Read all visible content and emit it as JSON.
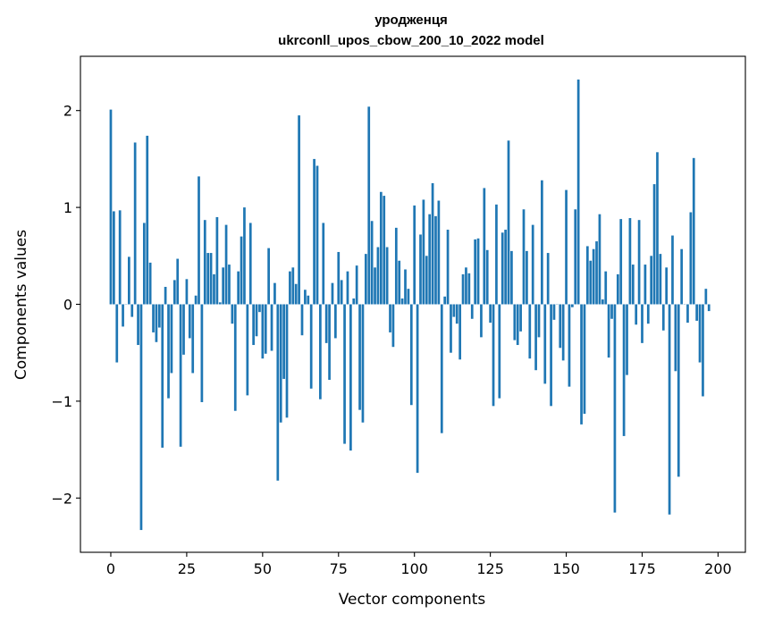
{
  "chart_data": {
    "type": "bar",
    "title_line1": "уродженця",
    "title_line2": "ukrconll_upos_cbow_200_10_2022 model",
    "xlabel": "Vector components",
    "ylabel": "Components values",
    "xlim": [
      -10,
      209
    ],
    "ylim": [
      -2.56,
      2.56
    ],
    "xticks": [
      0,
      25,
      50,
      75,
      100,
      125,
      150,
      175,
      200
    ],
    "xtick_labels": [
      "0",
      "25",
      "50",
      "75",
      "100",
      "125",
      "150",
      "175",
      "200"
    ],
    "yticks": [
      -2,
      -1,
      0,
      1,
      2
    ],
    "ytick_labels": [
      "−2",
      "−1",
      "0",
      "1",
      "2"
    ],
    "grid": false,
    "bar_color": "#1f77b4",
    "values": [
      2.01,
      0.96,
      -0.6,
      0.97,
      -0.23,
      0.0,
      0.49,
      -0.13,
      1.67,
      -0.42,
      -2.33,
      0.84,
      1.74,
      0.43,
      -0.29,
      -0.39,
      -0.24,
      -1.48,
      0.18,
      -0.97,
      -0.71,
      0.25,
      0.47,
      -1.47,
      -0.52,
      0.26,
      -0.35,
      -0.71,
      0.09,
      1.32,
      -1.01,
      0.87,
      0.53,
      0.53,
      0.31,
      0.9,
      0.02,
      0.38,
      0.82,
      0.41,
      -0.2,
      -1.1,
      0.34,
      0.7,
      1.0,
      -0.94,
      0.84,
      -0.42,
      -0.33,
      -0.08,
      -0.56,
      -0.51,
      0.58,
      -0.48,
      0.22,
      -1.82,
      -1.22,
      -0.77,
      -1.17,
      0.34,
      0.38,
      0.21,
      1.95,
      -0.32,
      0.15,
      0.09,
      -0.87,
      1.5,
      1.43,
      -0.98,
      0.84,
      -0.4,
      -0.78,
      0.22,
      -0.35,
      0.54,
      0.25,
      -1.44,
      0.34,
      -1.51,
      0.06,
      0.4,
      -1.09,
      -1.22,
      0.52,
      2.04,
      0.86,
      0.38,
      0.59,
      1.16,
      1.12,
      0.59,
      -0.29,
      -0.44,
      0.79,
      0.45,
      0.06,
      0.36,
      0.16,
      -1.04,
      1.02,
      -1.74,
      0.72,
      1.08,
      0.5,
      0.93,
      1.25,
      0.91,
      1.07,
      -1.33,
      0.08,
      0.77,
      -0.5,
      -0.13,
      -0.2,
      -0.57,
      0.31,
      0.38,
      0.32,
      -0.15,
      0.67,
      0.68,
      -0.34,
      1.2,
      0.56,
      -0.19,
      -1.05,
      1.03,
      -0.97,
      0.74,
      0.77,
      1.69,
      0.55,
      -0.37,
      -0.42,
      -0.28,
      0.98,
      0.55,
      -0.56,
      0.82,
      -0.68,
      -0.34,
      1.28,
      -0.82,
      0.53,
      -1.05,
      -0.16,
      0.0,
      -0.45,
      -0.58,
      1.18,
      -0.85,
      -0.03,
      0.98,
      2.32,
      -1.24,
      -1.13,
      0.6,
      0.45,
      0.57,
      0.65,
      0.93,
      0.05,
      0.34,
      -0.55,
      -0.15,
      -2.15,
      0.31,
      0.88,
      -1.36,
      -0.73,
      0.89,
      0.41,
      -0.21,
      0.87,
      -0.4,
      0.41,
      -0.2,
      0.5,
      1.24,
      1.57,
      0.52,
      -0.27,
      0.38,
      -2.17,
      0.71,
      -0.69,
      -1.78,
      0.57,
      0.0,
      -0.19,
      0.95,
      1.51,
      -0.17,
      -0.6,
      -0.95,
      0.16,
      -0.07
    ]
  }
}
